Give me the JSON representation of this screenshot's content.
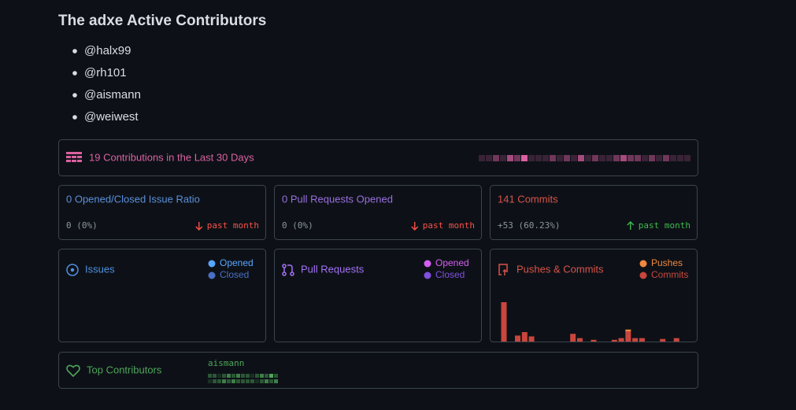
{
  "title": "The adxe Active Contributors",
  "contributors": [
    "@halx99",
    "@rh101",
    "@aismann",
    "@weiwest"
  ],
  "activity": {
    "label": "19 Contributions in the Last 30 Days",
    "color": "#db61a2",
    "days": [
      0,
      0,
      1,
      0,
      2,
      1,
      3,
      0,
      0,
      0,
      1,
      0,
      1,
      0,
      2,
      0,
      1,
      0,
      0,
      1,
      2,
      1,
      1,
      0,
      1,
      0,
      1,
      0,
      0,
      0
    ]
  },
  "stats": [
    {
      "title": "0 Opened/Closed Issue Ratio",
      "value": "0 (0%)",
      "trend": "past month",
      "color": "#5b8fd9",
      "trend_color": "#f85149",
      "direction": "down"
    },
    {
      "title": "0 Pull Requests Opened",
      "value": "0 (0%)",
      "trend": "past month",
      "color": "#9a6fe0",
      "trend_color": "#f85149",
      "direction": "down"
    },
    {
      "title": "141 Commits",
      "value": "+53 (60.23%)",
      "trend": "past month",
      "color": "#d9534a",
      "trend_color": "#3fb950",
      "direction": "up"
    }
  ],
  "panels": [
    {
      "title": "Issues",
      "color": "#4f8fe0",
      "icon": "issue",
      "legend": [
        {
          "name": "Opened",
          "color": "#58a6ff"
        },
        {
          "name": "Closed",
          "color": "#4a6fc4"
        }
      ]
    },
    {
      "title": "Pull Requests",
      "color": "#a371f7",
      "icon": "pr",
      "legend": [
        {
          "name": "Opened",
          "color": "#d55ff0"
        },
        {
          "name": "Closed",
          "color": "#8250df"
        }
      ]
    }
  ],
  "chart_data": {
    "type": "bar",
    "title": "Pushes & Commits",
    "color": "#d9534a",
    "series": [
      {
        "name": "Commits",
        "color": "#c9463d",
        "values": [
          46,
          0,
          7,
          11,
          6,
          0,
          0,
          0,
          0,
          0,
          9,
          4,
          0,
          2,
          0,
          0,
          2,
          4,
          12,
          4,
          4,
          0,
          0,
          3,
          0,
          4,
          0
        ]
      },
      {
        "name": "Pushes",
        "color": "#f0883e",
        "values": [
          0,
          0,
          0,
          0,
          0,
          0,
          0,
          0,
          0,
          0,
          0,
          0,
          0,
          0,
          0,
          0,
          0,
          0,
          2,
          0,
          0,
          0,
          0,
          0,
          0,
          0,
          0
        ]
      }
    ],
    "ylim": [
      0,
      46
    ]
  },
  "top": {
    "title": "Top Contributors",
    "color": "#4fa55a",
    "users": [
      {
        "name": "aismann",
        "days": [
          1,
          1,
          0,
          1,
          2,
          1,
          2,
          1,
          1,
          0,
          1,
          2,
          1,
          3,
          1,
          0,
          1,
          1,
          2,
          1,
          2,
          1,
          1,
          1,
          1,
          0,
          1,
          2,
          1,
          2
        ]
      }
    ]
  }
}
